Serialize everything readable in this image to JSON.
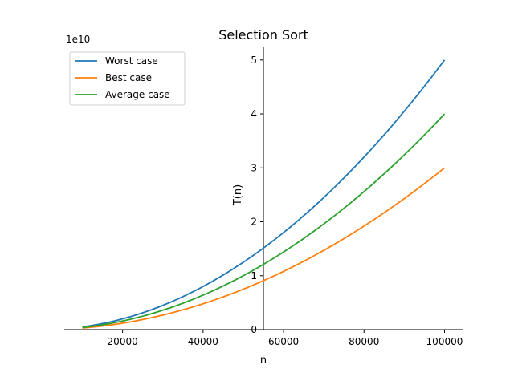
{
  "chart_data": {
    "type": "line",
    "title": "Selection Sort",
    "xlabel": "n",
    "ylabel": "T(n)",
    "y_offset_label": "1e10",
    "y_multiplier": 10000000000,
    "xlim": [
      5500,
      104500
    ],
    "ylim": [
      0,
      5.25
    ],
    "x_ticks": [
      20000,
      40000,
      60000,
      80000,
      100000
    ],
    "x_tick_labels": [
      "20000",
      "40000",
      "60000",
      "80000",
      "100000"
    ],
    "y_ticks": [
      0,
      1,
      2,
      3,
      4,
      5
    ],
    "y_tick_labels": [
      "0",
      "1",
      "2",
      "3",
      "4",
      "5"
    ],
    "y_axis_at_x": 55000,
    "grid": false,
    "legend_position": "top-left",
    "x": [
      10000,
      20000,
      30000,
      40000,
      50000,
      60000,
      70000,
      80000,
      90000,
      100000
    ],
    "series": [
      {
        "name": "Worst case",
        "color": "#1f77b4",
        "values": [
          0.05,
          0.2,
          0.45,
          0.8,
          1.25,
          1.8,
          2.45,
          3.2,
          4.05,
          5.0
        ]
      },
      {
        "name": "Best case",
        "color": "#ff7f0e",
        "values": [
          0.03,
          0.12,
          0.27,
          0.48,
          0.75,
          1.08,
          1.47,
          1.92,
          2.43,
          3.0
        ]
      },
      {
        "name": "Average case",
        "color": "#2ca02c",
        "values": [
          0.04,
          0.16,
          0.36,
          0.64,
          1.0,
          1.44,
          1.96,
          2.56,
          3.24,
          4.0
        ]
      }
    ]
  }
}
